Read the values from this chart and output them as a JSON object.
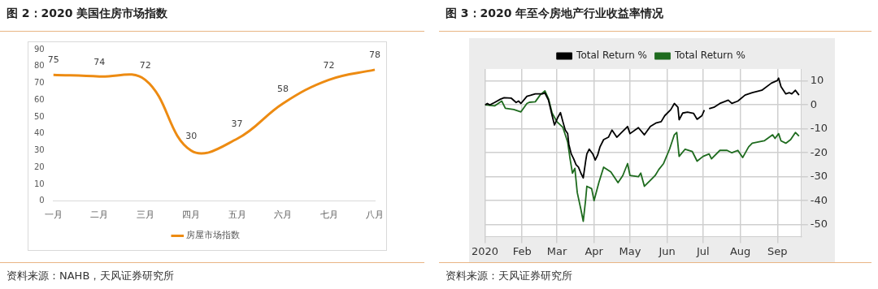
{
  "chart_data": [
    {
      "type": "line",
      "title": "图 2：2020 美国住房市场指数",
      "categories": [
        "一月",
        "二月",
        "三月",
        "四月",
        "五月",
        "六月",
        "七月",
        "八月"
      ],
      "series": [
        {
          "name": "房屋市场指数",
          "color": "#ed8b12",
          "values": [
            75,
            74,
            72,
            30,
            37,
            58,
            72,
            78
          ]
        }
      ],
      "ylim": [
        0,
        90
      ],
      "yticks": [
        0,
        10,
        20,
        30,
        40,
        50,
        60,
        70,
        80,
        90
      ],
      "grid": false,
      "legend": "bottom",
      "data_labels": true,
      "marker": "none",
      "line_style": "solid",
      "annotations": [
        "资料来源：NAHB，天风证券研究所"
      ]
    },
    {
      "type": "line",
      "title": "图 3：2020 年至今房地产行业收益率情况",
      "series": [
        {
          "name": "Total Return %",
          "color": "#000000",
          "x": [
            "2020-01-01",
            "2020-01-03",
            "2020-01-05",
            "2020-01-09",
            "2020-01-14",
            "2020-01-17",
            "2020-01-23",
            "2020-01-27",
            "2020-01-29",
            "2020-01-31",
            "2020-02-05",
            "2020-02-08",
            "2020-02-12",
            "2020-02-18",
            "2020-02-20",
            "2020-02-23",
            "2020-02-26",
            "2020-02-28",
            "2020-03-02",
            "2020-03-04",
            "2020-03-06",
            "2020-03-08",
            "2020-03-10",
            "2020-03-11",
            "2020-03-13",
            "2020-03-15",
            "2020-03-17",
            "2020-03-19",
            "2020-03-21",
            "2020-03-23",
            "2020-03-25",
            "2020-03-26",
            "2020-03-28",
            "2020-03-31",
            "2020-04-02",
            "2020-04-04",
            "2020-04-06",
            "2020-04-09",
            "2020-04-13",
            "2020-04-16",
            "2020-04-20",
            "2020-04-24",
            "2020-04-29",
            "2020-05-01",
            "2020-05-08",
            "2020-05-13",
            "2020-05-18",
            "2020-05-23",
            "2020-05-27",
            "2020-05-30",
            "2020-06-04",
            "2020-06-07",
            "2020-06-10",
            "2020-06-11",
            "2020-06-14",
            "2020-06-18",
            "2020-06-23",
            "2020-06-26",
            "2020-06-30",
            "2020-07-02",
            "2020-07-04",
            "2020-07-06",
            "2020-07-10",
            "2020-07-15",
            "2020-07-22",
            "2020-07-25",
            "2020-07-30",
            "2020-08-05",
            "2020-08-11",
            "2020-08-19",
            "2020-08-27",
            "2020-09-01",
            "2020-09-02",
            "2020-09-04",
            "2020-09-08",
            "2020-09-11",
            "2020-09-13",
            "2020-09-16",
            "2020-09-19"
          ],
          "values": [
            0,
            0.6,
            0,
            1,
            2.4,
            3,
            2.8,
            1,
            1.6,
            0.6,
            3.6,
            4,
            4.6,
            4.6,
            5,
            2,
            -4.4,
            -8.4,
            -5,
            -3.2,
            -7,
            -10.5,
            -12,
            -16.5,
            -20.5,
            -22.5,
            -25,
            -26,
            -28.5,
            -30.5,
            -23.5,
            -20.5,
            -18.5,
            -20.5,
            -23,
            -21,
            -17.5,
            -14.5,
            -13.5,
            -10.5,
            -13.5,
            -11.5,
            -9,
            -12,
            -9.5,
            -12.5,
            -9,
            -7.5,
            -7,
            -4.5,
            -2,
            0.6,
            -1,
            -6.2,
            -3.4,
            -3,
            -3.5,
            -6,
            -4.5,
            -2.2,
            null,
            -1.6,
            -1,
            0.6,
            2,
            0.6,
            1.6,
            4.1,
            5.1,
            6.1,
            9.1,
            10.2,
            11.2,
            7.6,
            4.6,
            5.1,
            4.6,
            6.1,
            4.1
          ]
        },
        {
          "name": "Total Return %",
          "color": "#1e6b1e",
          "x": [
            "2020-01-01",
            "2020-01-09",
            "2020-01-15",
            "2020-01-18",
            "2020-01-25",
            "2020-01-31",
            "2020-02-05",
            "2020-02-07",
            "2020-02-12",
            "2020-02-16",
            "2020-02-20",
            "2020-02-23",
            "2020-02-26",
            "2020-03-01",
            "2020-03-06",
            "2020-03-10",
            "2020-03-12",
            "2020-03-14",
            "2020-03-16",
            "2020-03-18",
            "2020-03-21",
            "2020-03-23",
            "2020-03-25",
            "2020-03-26",
            "2020-03-30",
            "2020-04-01",
            "2020-04-05",
            "2020-04-09",
            "2020-04-15",
            "2020-04-21",
            "2020-04-25",
            "2020-04-29",
            "2020-05-01",
            "2020-05-08",
            "2020-05-10",
            "2020-05-13",
            "2020-05-18",
            "2020-05-22",
            "2020-05-25",
            "2020-05-29",
            "2020-06-03",
            "2020-06-07",
            "2020-06-09",
            "2020-06-11",
            "2020-06-16",
            "2020-06-22",
            "2020-06-26",
            "2020-07-01",
            "2020-07-06",
            "2020-07-08",
            "2020-07-15",
            "2020-07-21",
            "2020-07-25",
            "2020-07-30",
            "2020-08-03",
            "2020-08-08",
            "2020-08-11",
            "2020-08-16",
            "2020-08-21",
            "2020-08-28",
            "2020-08-30",
            "2020-09-02",
            "2020-09-04",
            "2020-09-08",
            "2020-09-12",
            "2020-09-16",
            "2020-09-19"
          ],
          "values": [
            0,
            -0.4,
            1.6,
            -1.4,
            -1.9,
            -2.9,
            0.6,
            1.1,
            1.3,
            4.1,
            5.9,
            2.6,
            -3.4,
            -7,
            -9.4,
            -15.5,
            -22.5,
            -28.5,
            -26.5,
            -36.6,
            -43.6,
            -48.6,
            -39.6,
            -34,
            -35,
            -40,
            -32.5,
            -26,
            -28,
            -32.5,
            -29.5,
            -24.5,
            -29.5,
            -30,
            -28.5,
            -34,
            -31.5,
            -29.5,
            -27,
            -24.5,
            -18.5,
            -12.5,
            -11.5,
            -21.5,
            -18.5,
            -19.5,
            -23.5,
            -21.5,
            -20.5,
            -22.5,
            -19,
            -19,
            -20,
            -19,
            -22,
            -17.5,
            -16,
            -15.5,
            -15,
            -12.5,
            -14,
            -12,
            -15,
            -16,
            -14.5,
            -11.5,
            -13
          ]
        }
      ],
      "xlim": [
        "2020-01-01",
        "2020-09-21"
      ],
      "xticks": [
        {
          "value": "2020-01-01",
          "label": "2020"
        },
        {
          "value": "2020-02-01",
          "label": "Feb"
        },
        {
          "value": "2020-03-01",
          "label": "Mar"
        },
        {
          "value": "2020-04-01",
          "label": "Apr"
        },
        {
          "value": "2020-05-01",
          "label": "May"
        },
        {
          "value": "2020-06-01",
          "label": "Jun"
        },
        {
          "value": "2020-07-01",
          "label": "Jul"
        },
        {
          "value": "2020-08-01",
          "label": "Aug"
        },
        {
          "value": "2020-09-01",
          "label": "Sep"
        }
      ],
      "ylim": [
        -55,
        15
      ],
      "yticks": [
        -50,
        -40,
        -30,
        -20,
        -10,
        0,
        10
      ],
      "grid": true,
      "legend": "top",
      "marker": "none",
      "line_style": "solid",
      "annotations": [
        "资料来源：天风证券研究所"
      ]
    }
  ]
}
